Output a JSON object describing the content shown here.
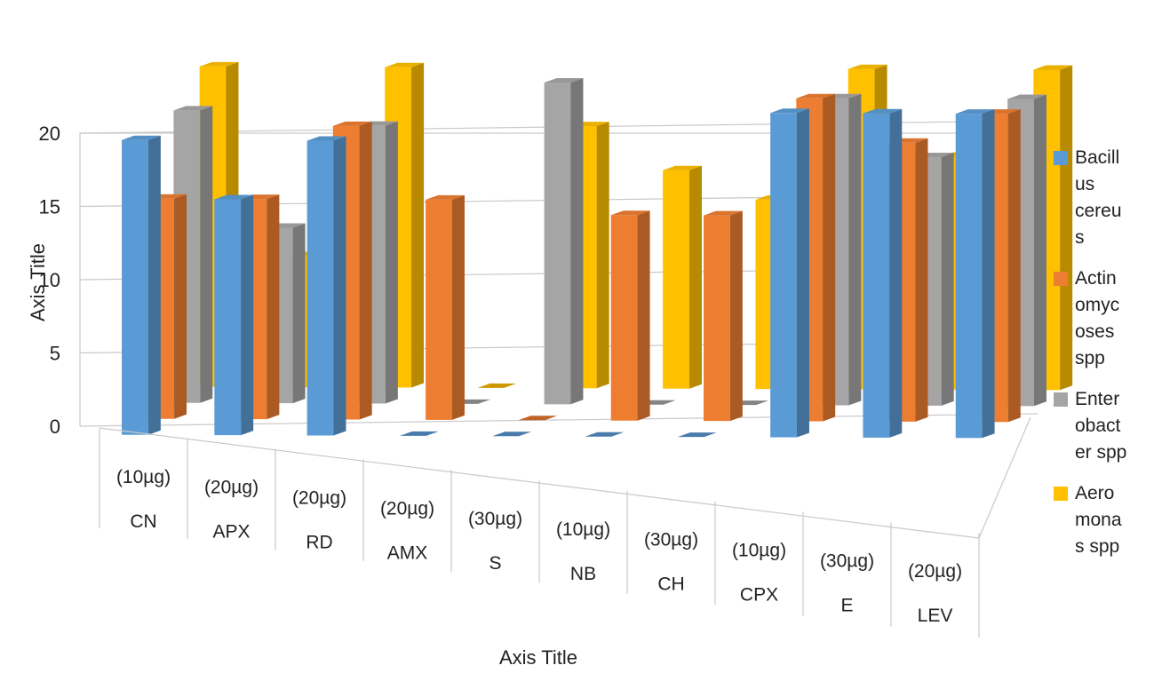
{
  "chart_data": {
    "type": "bar",
    "variant": "3d-clustered-column",
    "title": "",
    "xlabel": "Axis Title",
    "ylabel": "Axis Title",
    "ylim": [
      0,
      20
    ],
    "yticks": [
      0,
      5,
      10,
      15,
      20
    ],
    "categories": [
      {
        "dose": "(10µg)",
        "name": "CN"
      },
      {
        "dose": "(20µg)",
        "name": "APX"
      },
      {
        "dose": "(20µg)",
        "name": "RD"
      },
      {
        "dose": "(20µg)",
        "name": "AMX"
      },
      {
        "dose": "(30µg)",
        "name": "S"
      },
      {
        "dose": "(10µg)",
        "name": "NB"
      },
      {
        "dose": "(30µg)",
        "name": "CH"
      },
      {
        "dose": "(10µg)",
        "name": "CPX"
      },
      {
        "dose": "(30µg)",
        "name": "E"
      },
      {
        "dose": "(20µg)",
        "name": "LEV"
      }
    ],
    "series": [
      {
        "name": "Bacillus cereus",
        "legend_lines": [
          "Bacill",
          "us",
          "cereu",
          "s"
        ],
        "color": "#5B9BD5",
        "values": [
          20,
          16,
          20,
          0,
          0,
          0,
          0,
          22,
          22,
          22
        ]
      },
      {
        "name": "Actinomycoses spp",
        "legend_lines": [
          "Actin",
          "omyc",
          "oses",
          "spp"
        ],
        "color": "#ED7D31",
        "values": [
          15,
          15,
          20,
          15,
          0,
          14,
          14,
          22,
          19,
          21
        ]
      },
      {
        "name": "Enterobacter spp",
        "legend_lines": [
          "Enter",
          "obact",
          "er spp"
        ],
        "color": "#A5A5A5",
        "values": [
          20,
          12,
          19,
          0,
          22,
          0,
          0,
          21,
          17,
          21
        ]
      },
      {
        "name": "Aeromonas spp",
        "legend_lines": [
          "Aero",
          "mona",
          "s spp"
        ],
        "color": "#FFC000",
        "values": [
          22,
          9,
          22,
          0,
          18,
          15,
          13,
          22,
          16,
          22
        ]
      }
    ],
    "grid": true,
    "legend_position": "right"
  }
}
